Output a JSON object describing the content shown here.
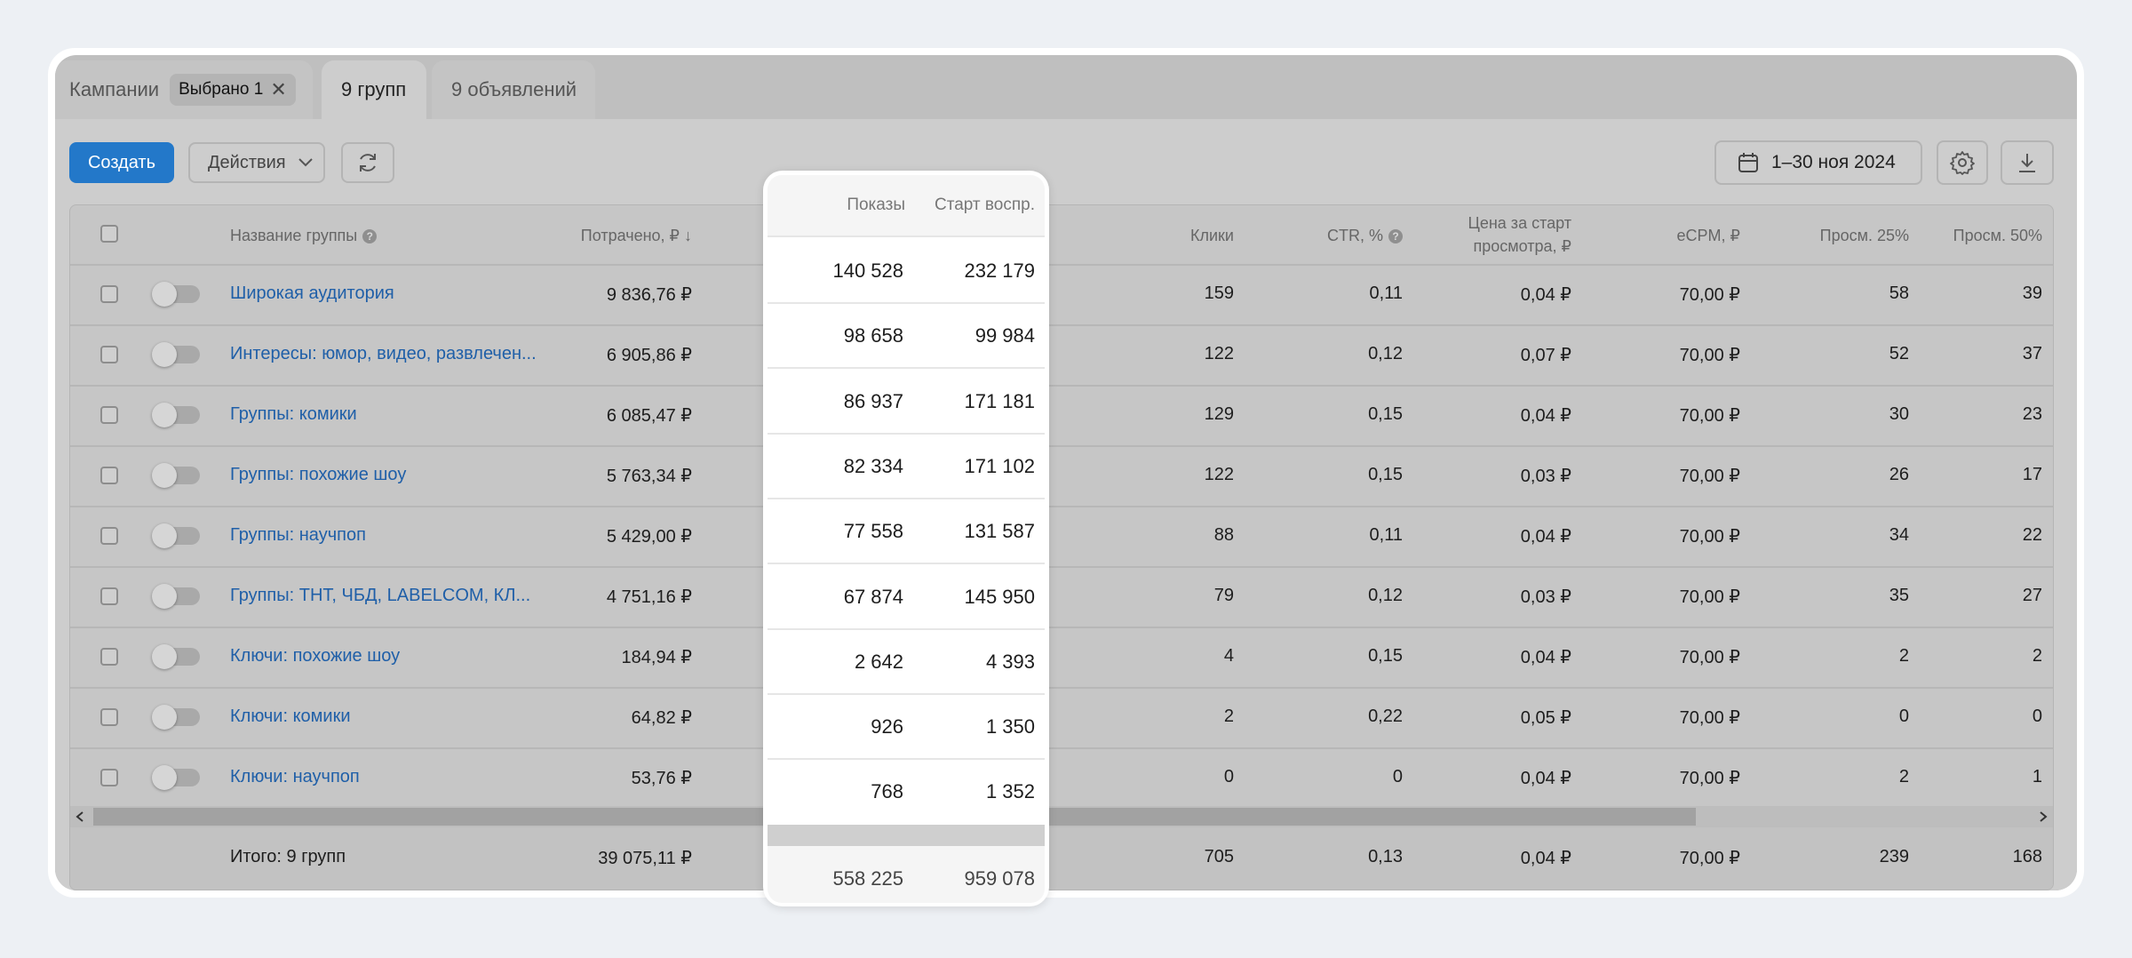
{
  "tabs": {
    "campaigns_label": "Кампании",
    "selected_chip": "Выбрано 1",
    "groups_label": "9 групп",
    "ads_label": "9 объявлений"
  },
  "toolbar": {
    "create_label": "Создать",
    "actions_label": "Действия",
    "date_range": "1–30 ноя 2024",
    "icons": [
      "refresh-icon",
      "calendar-icon",
      "gear-icon",
      "download-icon"
    ]
  },
  "table": {
    "headers": {
      "name": "Название группы",
      "spent": "Потрачено, ₽ ↓",
      "clicks": "Клики",
      "ctr": "CTR, %",
      "price_line1": "Цена за старт",
      "price_line2": "просмотра, ₽",
      "ecpm": "eCPM, ₽",
      "views25": "Просм. 25%",
      "views50": "Просм. 50%"
    },
    "rows": [
      {
        "name": "Широкая аудитория",
        "spent": "9 836,76 ₽",
        "clicks": "159",
        "ctr": "0,11",
        "price": "0,04 ₽",
        "ecpm": "70,00 ₽",
        "views25": "58",
        "views50": "39"
      },
      {
        "name": "Интересы: юмор, видео, развлечен...",
        "spent": "6 905,86 ₽",
        "clicks": "122",
        "ctr": "0,12",
        "price": "0,07 ₽",
        "ecpm": "70,00 ₽",
        "views25": "52",
        "views50": "37"
      },
      {
        "name": "Группы: комики",
        "spent": "6 085,47 ₽",
        "clicks": "129",
        "ctr": "0,15",
        "price": "0,04 ₽",
        "ecpm": "70,00 ₽",
        "views25": "30",
        "views50": "23"
      },
      {
        "name": "Группы: похожие шоу",
        "spent": "5 763,34 ₽",
        "clicks": "122",
        "ctr": "0,15",
        "price": "0,03 ₽",
        "ecpm": "70,00 ₽",
        "views25": "26",
        "views50": "17"
      },
      {
        "name": "Группы: научпоп",
        "spent": "5 429,00 ₽",
        "clicks": "88",
        "ctr": "0,11",
        "price": "0,04 ₽",
        "ecpm": "70,00 ₽",
        "views25": "34",
        "views50": "22"
      },
      {
        "name": "Группы: ТНТ, ЧБД, LABELCOM, КЛ...",
        "spent": "4 751,16 ₽",
        "clicks": "79",
        "ctr": "0,12",
        "price": "0,03 ₽",
        "ecpm": "70,00 ₽",
        "views25": "35",
        "views50": "27"
      },
      {
        "name": "Ключи: похожие шоу",
        "spent": "184,94 ₽",
        "clicks": "4",
        "ctr": "0,15",
        "price": "0,04 ₽",
        "ecpm": "70,00 ₽",
        "views25": "2",
        "views50": "2"
      },
      {
        "name": "Ключи: комики",
        "spent": "64,82 ₽",
        "clicks": "2",
        "ctr": "0,22",
        "price": "0,05 ₽",
        "ecpm": "70,00 ₽",
        "views25": "0",
        "views50": "0"
      },
      {
        "name": "Ключи: научпоп",
        "spent": "53,76 ₽",
        "clicks": "0",
        "ctr": "0",
        "price": "0,04 ₽",
        "ecpm": "70,00 ₽",
        "views25": "2",
        "views50": "1"
      }
    ],
    "total": {
      "name": "Итого: 9 групп",
      "spent": "39 075,11 ₽",
      "clicks": "705",
      "ctr": "0,13",
      "price": "0,04 ₽",
      "ecpm": "70,00 ₽",
      "views25": "239",
      "views50": "168"
    }
  },
  "highlight": {
    "headers": {
      "impressions": "Показы",
      "starts": "Старт воспр."
    },
    "rows": [
      {
        "impressions": "140 528",
        "starts": "232 179"
      },
      {
        "impressions": "98 658",
        "starts": "99 984"
      },
      {
        "impressions": "86 937",
        "starts": "171 181"
      },
      {
        "impressions": "82 334",
        "starts": "171 102"
      },
      {
        "impressions": "77 558",
        "starts": "131 587"
      },
      {
        "impressions": "67 874",
        "starts": "145 950"
      },
      {
        "impressions": "2 642",
        "starts": "4 393"
      },
      {
        "impressions": "926",
        "starts": "1 350"
      },
      {
        "impressions": "768",
        "starts": "1 352"
      }
    ],
    "total": {
      "impressions": "558 225",
      "starts": "959 078"
    }
  },
  "colors": {
    "primary": "#2378c9",
    "link": "#1f5fa8",
    "overlay": "#bfbfbf",
    "page_bg": "#edf0f4"
  }
}
